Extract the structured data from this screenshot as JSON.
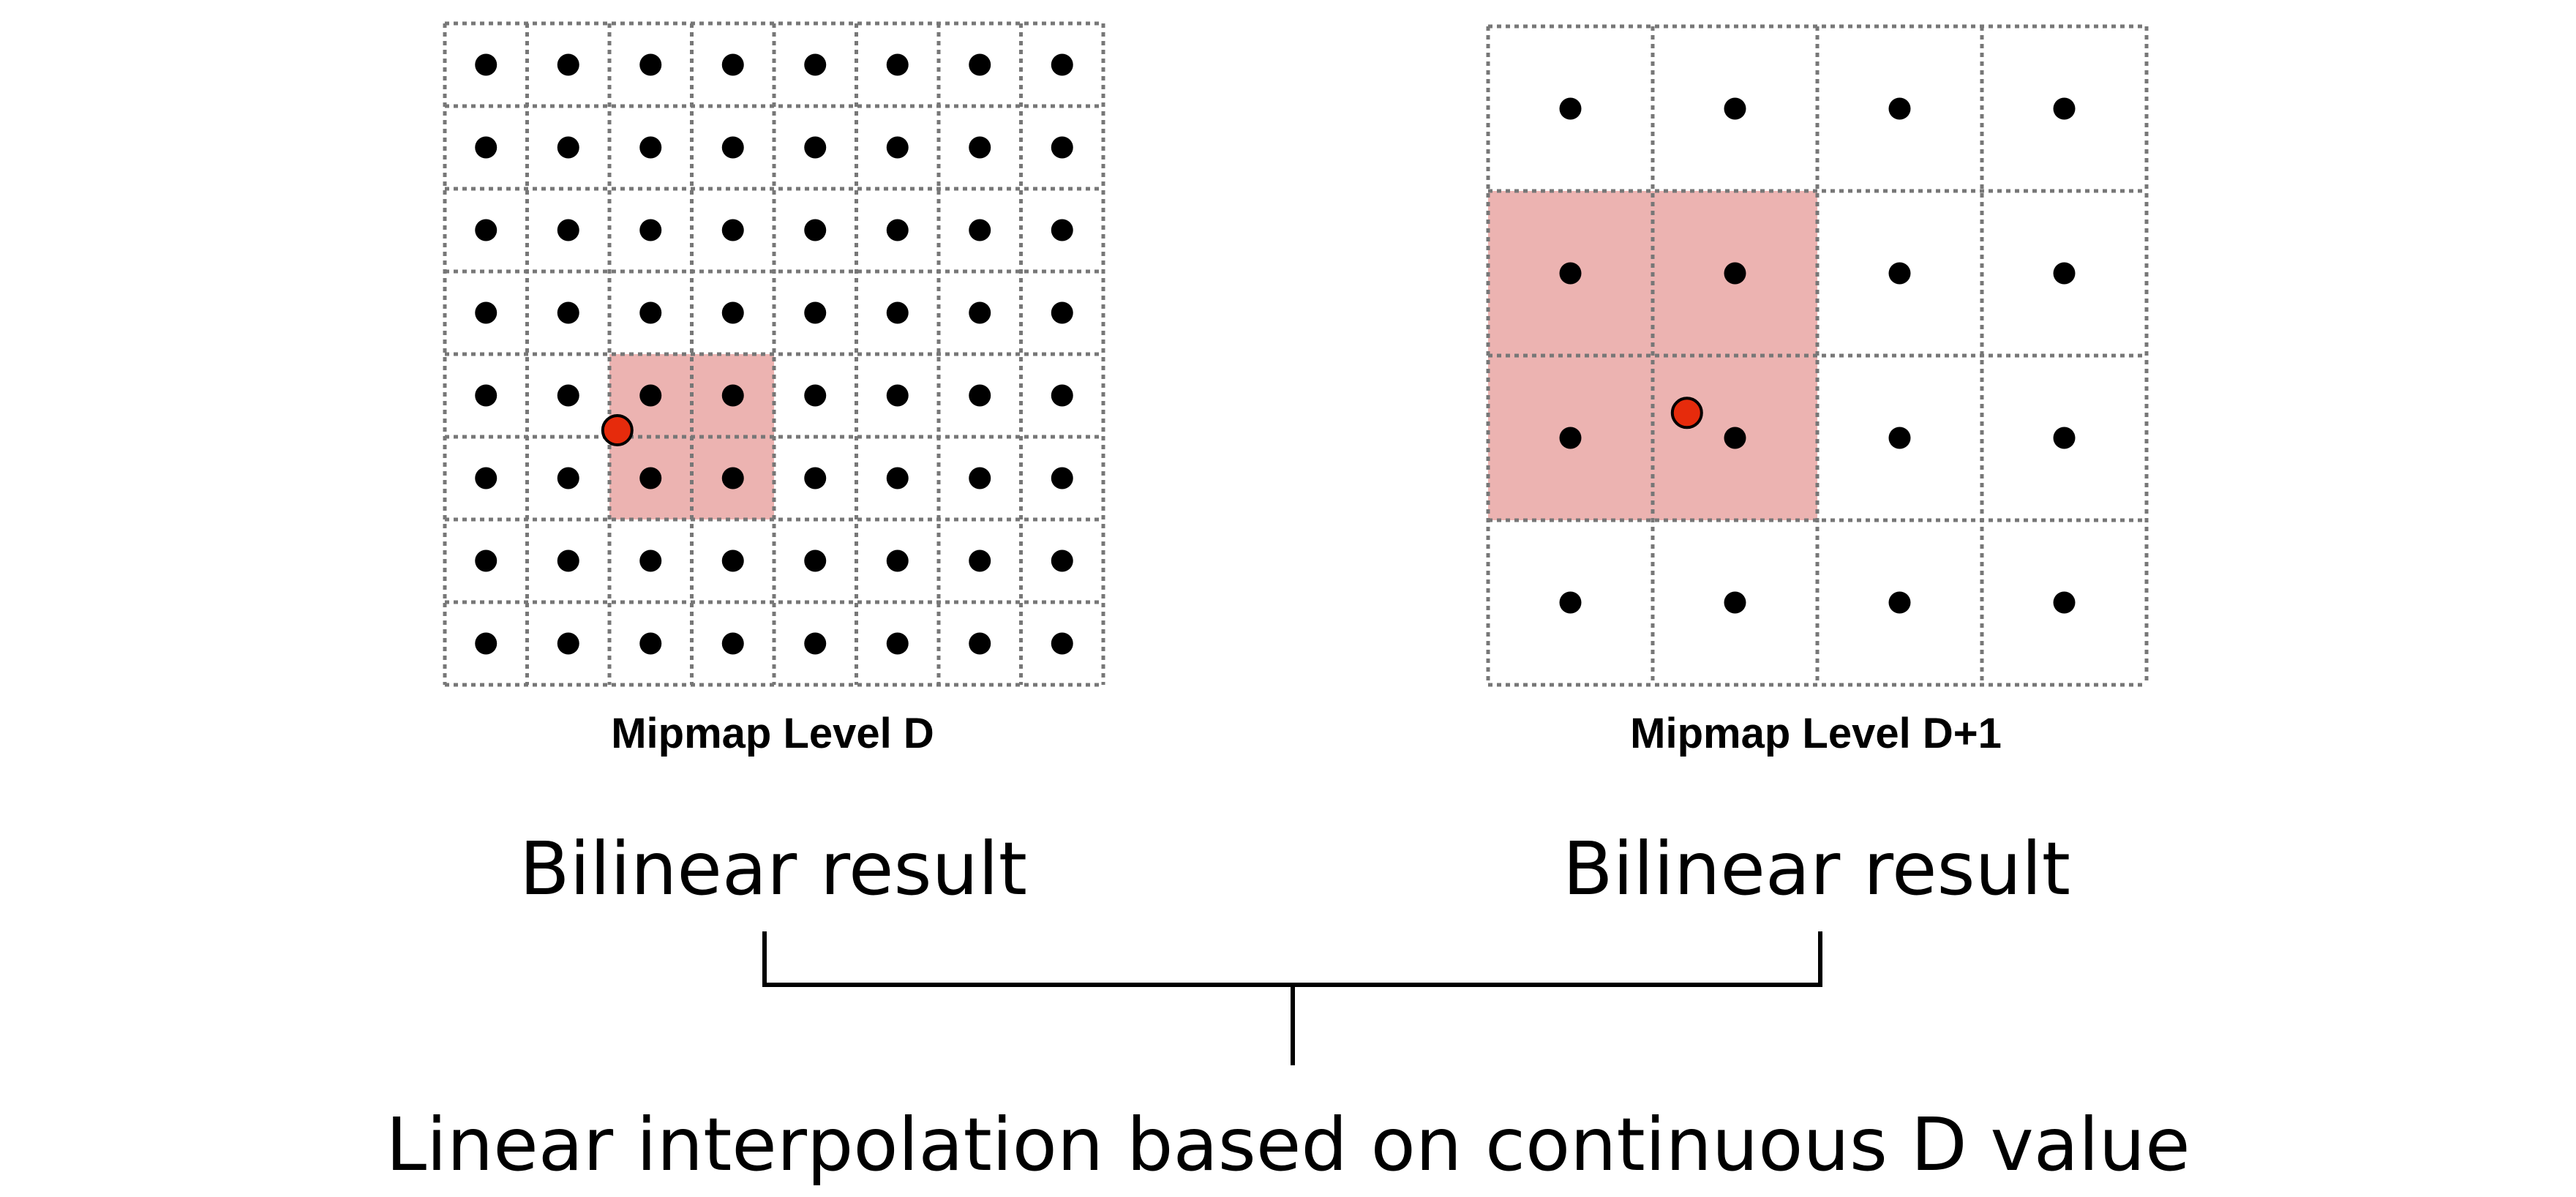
{
  "level_d": {
    "caption": "Mipmap Level D",
    "grid_size": 8,
    "highlight": {
      "col": 2,
      "row": 4,
      "cols": 2,
      "rows": 2
    },
    "sample": {
      "u": 0.262,
      "v": 0.615
    }
  },
  "level_d1": {
    "caption": "Mipmap Level D+1",
    "grid_size": 4,
    "highlight": {
      "col": 0,
      "row": 1,
      "cols": 2,
      "rows": 2
    },
    "sample": {
      "u": 0.302,
      "v": 0.587
    }
  },
  "labels": {
    "bilinear_left": "Bilinear result",
    "bilinear_right": "Bilinear result",
    "final": "Linear interpolation based on continuous D value"
  },
  "colors": {
    "highlight": "#ecb3b1",
    "sample": "#e62b0c",
    "texel_center": "#000000",
    "grid_line": "#777777",
    "bracket": "#000000"
  }
}
